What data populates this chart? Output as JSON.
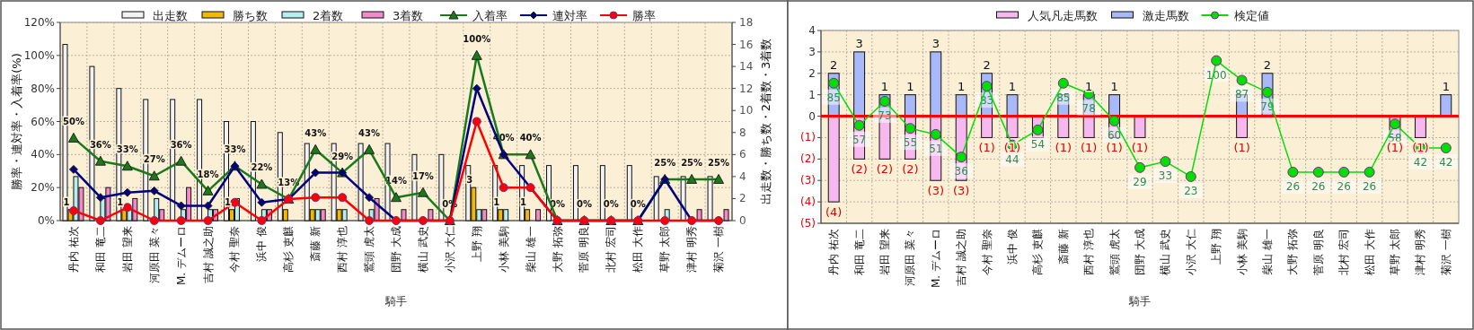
{
  "chart_data": [
    {
      "type": "bar",
      "xlabel": "騎手",
      "ylabel": "勝率・連対率・入着率(%)",
      "y2label": "出走数・勝ち数・2着数・3着数",
      "legend": "top",
      "grid": true,
      "categories": [
        "丹内 祐次",
        "和田 竜二",
        "岩田 望来",
        "河原田 菜々",
        "M. デムーロ",
        "吉村 誠之助",
        "今村 聖奈",
        "浜中 俊",
        "高杉 吏麒",
        "斎藤 新",
        "西村 淳也",
        "鷲頭 虎太",
        "団野 大成",
        "横山 武史",
        "小沢 大仁",
        "上野 翔",
        "小林 美駒",
        "柴山 雄一",
        "大野 拓弥",
        "菅原 明良",
        "北村 宏司",
        "松田 大作",
        "草野 太郎",
        "津村 明秀",
        "菊沢 一樹"
      ],
      "ylim": [
        0,
        120
      ],
      "yticks": [
        {
          "value": 0,
          "label": "0%"
        },
        {
          "value": 20,
          "label": "20%"
        },
        {
          "value": 40,
          "label": "40%"
        },
        {
          "value": 60,
          "label": "60%"
        },
        {
          "value": 80,
          "label": "80%"
        },
        {
          "value": 100,
          "label": "100%"
        },
        {
          "value": 120,
          "label": "120%"
        }
      ],
      "y2lim": [
        0,
        18
      ],
      "y2ticks": [
        0,
        2,
        4,
        6,
        8,
        10,
        12,
        14,
        16,
        18
      ],
      "series": [
        {
          "name": "出走数",
          "type": "bar",
          "axis": "y2",
          "color": "#f2f2f2",
          "values": [
            16,
            14,
            12,
            11,
            11,
            11,
            9,
            9,
            8,
            7,
            7,
            7,
            7,
            6,
            6,
            5,
            5,
            5,
            5,
            5,
            5,
            5,
            4,
            4,
            4
          ]
        },
        {
          "name": "勝ち数",
          "type": "bar",
          "axis": "y2",
          "color": "#f5b800",
          "values": [
            1,
            0,
            1,
            0,
            0,
            0,
            1,
            0,
            1,
            1,
            1,
            0,
            0,
            0,
            0,
            3,
            1,
            1,
            0,
            0,
            0,
            0,
            0,
            0,
            0
          ],
          "value_labels": [
            "1",
            null,
            "1",
            null,
            null,
            null,
            "1",
            null,
            null,
            null,
            null,
            null,
            null,
            null,
            null,
            "3",
            "1",
            "1",
            null,
            null,
            null,
            null,
            null,
            null,
            null
          ]
        },
        {
          "name": "2着数",
          "type": "bar",
          "axis": "y2",
          "color": "#b4eef0",
          "values": [
            4,
            2,
            1,
            2,
            1,
            1,
            2,
            1,
            0,
            1,
            1,
            1,
            0,
            0,
            0,
            1,
            1,
            0,
            0,
            0,
            0,
            0,
            1,
            0,
            0
          ]
        },
        {
          "name": "3着数",
          "type": "bar",
          "axis": "y2",
          "color": "#f08ac8",
          "values": [
            3,
            3,
            2,
            1,
            3,
            1,
            0,
            1,
            0,
            1,
            0,
            2,
            1,
            1,
            0,
            1,
            0,
            1,
            0,
            0,
            0,
            0,
            0,
            1,
            1
          ]
        },
        {
          "name": "入着率",
          "type": "line",
          "color": "#1a7a1a",
          "marker": "triangle",
          "values": [
            50,
            36,
            33,
            27,
            36,
            18,
            33,
            22,
            13,
            43,
            29,
            43,
            14,
            17,
            0,
            100,
            40,
            40,
            0,
            0,
            0,
            0,
            25,
            25,
            25
          ],
          "value_labels": [
            "50%",
            "36%",
            "33%",
            "27%",
            "36%",
            "18%",
            "33%",
            "22%",
            "13%",
            "43%",
            "29%",
            "43%",
            "14%",
            "17%",
            "0%",
            "100%",
            "40%",
            "40%",
            "0%",
            "0%",
            "0%",
            "0%",
            "25%",
            "25%",
            "25%"
          ]
        },
        {
          "name": "連対率",
          "type": "line",
          "color": "#000080",
          "marker": "diamond",
          "values": [
            31,
            14,
            17,
            18,
            9,
            9,
            33,
            11,
            13,
            29,
            29,
            14,
            0,
            0,
            0,
            80,
            40,
            20,
            0,
            0,
            0,
            0,
            25,
            0,
            0
          ]
        },
        {
          "name": "勝率",
          "type": "line",
          "color": "#ff0000",
          "marker": "circle",
          "values": [
            6,
            0,
            8,
            0,
            0,
            0,
            11,
            0,
            13,
            14,
            14,
            0,
            0,
            0,
            0,
            60,
            20,
            20,
            0,
            0,
            0,
            0,
            0,
            0,
            0
          ]
        }
      ]
    },
    {
      "type": "bar",
      "xlabel": "騎手",
      "legend": "top",
      "grid": true,
      "stacked": true,
      "categories": [
        "丹内 祐次",
        "和田 竜二",
        "岩田 望来",
        "河原田 菜々",
        "M. デムーロ",
        "吉村 誠之助",
        "今村 聖奈",
        "浜中 俊",
        "高杉 吏麒",
        "斎藤 新",
        "西村 淳也",
        "鷲頭 虎太",
        "団野 大成",
        "横山 武史",
        "小沢 大仁",
        "上野 翔",
        "小林 美駒",
        "柴山 雄一",
        "大野 拓弥",
        "菅原 明良",
        "北村 宏司",
        "松田 大作",
        "草野 太郎",
        "津村 明秀",
        "菊沢 一樹"
      ],
      "ylim": [
        -5,
        4
      ],
      "yticks": [
        {
          "value": -5,
          "label": "(5)"
        },
        {
          "value": -4,
          "label": "(4)"
        },
        {
          "value": -3,
          "label": "(3)"
        },
        {
          "value": -2,
          "label": "(2)"
        },
        {
          "value": -1,
          "label": "(1)"
        },
        0,
        1,
        2,
        3,
        4
      ],
      "y2lim": [
        -8,
        120
      ],
      "ref_lines": [
        {
          "axis": "y",
          "value": 0,
          "color": "#ff0000"
        }
      ],
      "series": [
        {
          "name": "人気凡走馬数",
          "type": "bar",
          "color": "#f7b8f0",
          "values": [
            -4,
            -2,
            -2,
            -2,
            -3,
            -3,
            -1,
            -1,
            -1,
            -1,
            -1,
            -1,
            -1,
            0,
            0,
            0,
            -1,
            0,
            0,
            0,
            0,
            0,
            -1,
            -1,
            0
          ],
          "value_labels": [
            "(4)",
            "(2)",
            "(2)",
            "(2)",
            "(3)",
            "(3)",
            "(1)",
            "(1)",
            null,
            "(1)",
            "(1)",
            "(1)",
            "(1)",
            null,
            null,
            null,
            "(1)",
            null,
            null,
            null,
            null,
            null,
            "(1)",
            "(1)",
            null
          ]
        },
        {
          "name": "激走馬数",
          "type": "bar",
          "color": "#a8b8f8",
          "values": [
            2,
            3,
            1,
            1,
            3,
            1,
            2,
            1,
            0,
            1,
            1,
            1,
            0,
            0,
            0,
            0,
            1,
            2,
            0,
            0,
            0,
            0,
            0,
            0,
            1
          ],
          "value_labels": [
            "2",
            "3",
            "1",
            "1",
            "3",
            "1",
            "2",
            "1",
            null,
            null,
            "1",
            "1",
            null,
            null,
            null,
            null,
            null,
            "2",
            null,
            null,
            null,
            null,
            null,
            null,
            "1"
          ]
        },
        {
          "name": "検定値",
          "type": "line",
          "axis": "y2",
          "color": "#00e000",
          "marker": "circle",
          "values": [
            85,
            57,
            73,
            55,
            51,
            36,
            83,
            44,
            54,
            85,
            78,
            60,
            29,
            33,
            23,
            100,
            87,
            79,
            26,
            26,
            26,
            26,
            58,
            42,
            42
          ],
          "value_labels": [
            "85",
            "57",
            "73",
            "55",
            "51",
            "36",
            "83",
            "44",
            "54",
            "85",
            "78",
            "60",
            "29",
            "33",
            "23",
            "100",
            "87",
            "79",
            "26",
            "26",
            "26",
            "26",
            "58",
            "42",
            "42"
          ]
        }
      ]
    }
  ]
}
